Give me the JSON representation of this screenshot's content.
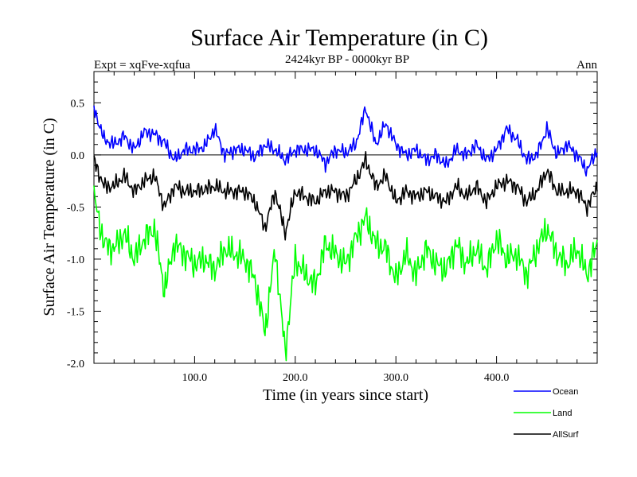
{
  "chart_data": {
    "type": "line",
    "title": "Surface Air Temperature (in C)",
    "subtitle": "2424kyr BP - 0000kyr BP",
    "left_label": "Expt = xqFve-xqfua",
    "right_label": "Ann",
    "xlabel": "Time (in years since start)",
    "ylabel": "Surface Air Temperature (in C)",
    "xlim": [
      0,
      500
    ],
    "ylim": [
      -2.0,
      0.8
    ],
    "x_ticks": [
      100,
      200,
      300,
      400
    ],
    "x_tick_labels": [
      "100.0",
      "200.0",
      "300.0",
      "400.0"
    ],
    "y_ticks": [
      0.5,
      0.0,
      -0.5,
      -1.0,
      -1.5,
      -2.0
    ],
    "y_tick_labels": [
      "0.5",
      "0.0",
      "-0.5",
      "-1.0",
      "-1.5",
      "-2.0"
    ],
    "zero_line": true,
    "grid": false,
    "legend_position": "bottom-right",
    "series": [
      {
        "name": "Ocean",
        "color": "#0000ff",
        "sample_step_years": 10,
        "x": [
          0,
          10,
          20,
          30,
          40,
          50,
          60,
          70,
          80,
          90,
          100,
          110,
          120,
          130,
          140,
          150,
          160,
          170,
          180,
          190,
          200,
          210,
          220,
          230,
          240,
          250,
          260,
          270,
          280,
          290,
          300,
          310,
          320,
          330,
          340,
          350,
          360,
          370,
          380,
          390,
          400,
          410,
          420,
          430,
          440,
          450,
          460,
          470,
          480,
          490,
          500
        ],
        "values": [
          0.45,
          0.15,
          0.1,
          0.18,
          0.05,
          0.22,
          0.2,
          0.12,
          -0.05,
          0.05,
          0.05,
          0.08,
          0.25,
          0.0,
          0.05,
          0.05,
          -0.02,
          0.1,
          0.05,
          -0.05,
          0.05,
          0.05,
          0.05,
          -0.08,
          0.05,
          0.02,
          0.1,
          0.45,
          0.1,
          0.3,
          0.1,
          0.0,
          0.05,
          -0.05,
          0.0,
          -0.1,
          0.05,
          0.0,
          0.1,
          -0.05,
          0.05,
          0.25,
          0.15,
          -0.05,
          0.0,
          0.25,
          0.0,
          0.1,
          0.0,
          -0.15,
          0.05
        ]
      },
      {
        "name": "Land",
        "color": "#00ff00",
        "sample_step_years": 10,
        "x": [
          0,
          10,
          20,
          30,
          40,
          50,
          60,
          70,
          80,
          90,
          100,
          110,
          120,
          130,
          140,
          150,
          160,
          170,
          180,
          190,
          200,
          210,
          220,
          230,
          240,
          250,
          260,
          270,
          280,
          290,
          300,
          310,
          320,
          330,
          340,
          350,
          360,
          370,
          380,
          390,
          400,
          410,
          420,
          430,
          440,
          450,
          460,
          470,
          480,
          490,
          500
        ],
        "values": [
          -0.4,
          -0.85,
          -0.9,
          -0.75,
          -1.0,
          -0.8,
          -0.7,
          -1.3,
          -0.85,
          -0.95,
          -1.05,
          -1.0,
          -1.1,
          -0.9,
          -0.95,
          -1.0,
          -1.2,
          -1.7,
          -0.9,
          -1.9,
          -1.0,
          -1.15,
          -1.25,
          -0.85,
          -0.95,
          -1.05,
          -0.8,
          -0.6,
          -0.85,
          -0.9,
          -1.2,
          -0.95,
          -1.15,
          -0.9,
          -1.05,
          -1.1,
          -0.85,
          -1.05,
          -0.9,
          -1.1,
          -0.8,
          -1.0,
          -0.95,
          -1.15,
          -0.9,
          -0.7,
          -0.95,
          -1.05,
          -0.9,
          -1.15,
          -0.85
        ]
      },
      {
        "name": "AllSurf",
        "color": "#000000",
        "sample_step_years": 10,
        "x": [
          0,
          10,
          20,
          30,
          40,
          50,
          60,
          70,
          80,
          90,
          100,
          110,
          120,
          130,
          140,
          150,
          160,
          170,
          180,
          190,
          200,
          210,
          220,
          230,
          240,
          250,
          260,
          270,
          280,
          290,
          300,
          310,
          320,
          330,
          340,
          350,
          360,
          370,
          380,
          390,
          400,
          410,
          420,
          430,
          440,
          450,
          460,
          470,
          480,
          490,
          500
        ],
        "values": [
          -0.05,
          -0.3,
          -0.3,
          -0.2,
          -0.35,
          -0.25,
          -0.2,
          -0.5,
          -0.3,
          -0.35,
          -0.35,
          -0.33,
          -0.3,
          -0.35,
          -0.35,
          -0.35,
          -0.45,
          -0.7,
          -0.35,
          -0.75,
          -0.35,
          -0.4,
          -0.45,
          -0.35,
          -0.35,
          -0.4,
          -0.25,
          -0.05,
          -0.3,
          -0.2,
          -0.45,
          -0.35,
          -0.4,
          -0.35,
          -0.4,
          -0.45,
          -0.3,
          -0.4,
          -0.3,
          -0.45,
          -0.3,
          -0.25,
          -0.3,
          -0.45,
          -0.35,
          -0.15,
          -0.35,
          -0.35,
          -0.35,
          -0.5,
          -0.3
        ]
      }
    ]
  }
}
